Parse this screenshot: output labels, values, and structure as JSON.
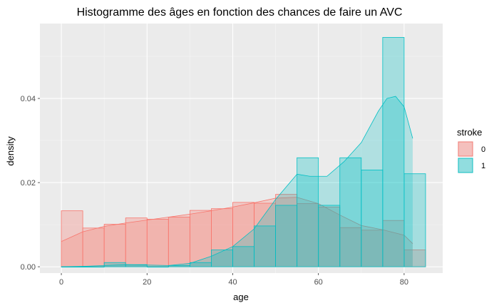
{
  "chart_data": {
    "type": "histogram",
    "title": "Histogramme des âges en fonction des chances de faire un AVC",
    "xlabel": "age",
    "ylabel": "density",
    "xlim": [
      -5,
      89
    ],
    "ylim": [
      -0.0015,
      0.0578
    ],
    "x_ticks": [
      0,
      20,
      40,
      60,
      80
    ],
    "x_tick_labels": [
      "0",
      "20",
      "40",
      "60",
      "80"
    ],
    "y_ticks": [
      0.0,
      0.02,
      0.04
    ],
    "y_tick_labels": [
      "0.00",
      "0.02",
      "0.04"
    ],
    "grid": true,
    "legend": {
      "title": "stroke",
      "position": "right"
    },
    "bins": [
      [
        0,
        5
      ],
      [
        5,
        10
      ],
      [
        10,
        15
      ],
      [
        15,
        20
      ],
      [
        20,
        25
      ],
      [
        25,
        30
      ],
      [
        30,
        35
      ],
      [
        35,
        40
      ],
      [
        40,
        45
      ],
      [
        45,
        50
      ],
      [
        50,
        55
      ],
      [
        55,
        60
      ],
      [
        60,
        65
      ],
      [
        65,
        70
      ],
      [
        70,
        75
      ],
      [
        75,
        80
      ],
      [
        80,
        85
      ]
    ],
    "series": [
      {
        "name": "0",
        "color": "#F8766D",
        "fill": "#F8766D",
        "histogram": [
          0.0133,
          0.0092,
          0.0101,
          0.0116,
          0.0113,
          0.0118,
          0.0134,
          0.0138,
          0.0153,
          0.0151,
          0.0172,
          0.015,
          0.0142,
          0.0093,
          0.0087,
          0.011,
          0.004
        ],
        "density_x": [
          0,
          5,
          10,
          15,
          20,
          25,
          30,
          35,
          40,
          45,
          50,
          55,
          60,
          65,
          70,
          75,
          80,
          82
        ],
        "density_y": [
          0.006,
          0.0083,
          0.0096,
          0.0104,
          0.0111,
          0.0118,
          0.0125,
          0.0133,
          0.0142,
          0.0152,
          0.0163,
          0.0165,
          0.015,
          0.0123,
          0.0098,
          0.0088,
          0.0075,
          0.0055
        ]
      },
      {
        "name": "1",
        "color": "#00BFC4",
        "fill": "#00BFC4",
        "histogram": [
          0.0,
          0.0,
          0.001,
          0.0005,
          0.0,
          0.0003,
          0.001,
          0.004,
          0.0048,
          0.0097,
          0.0146,
          0.0259,
          0.0146,
          0.0259,
          0.023,
          0.0545,
          0.0221
        ],
        "density_x": [
          0,
          5,
          10,
          15,
          20,
          25,
          30,
          35,
          40,
          45,
          50,
          55,
          58,
          62,
          66,
          70,
          74,
          76,
          78,
          80,
          82
        ],
        "density_y": [
          0.0,
          0.0001,
          0.0003,
          0.0005,
          0.0004,
          0.0003,
          0.0008,
          0.0025,
          0.0048,
          0.009,
          0.016,
          0.022,
          0.0215,
          0.0215,
          0.025,
          0.0295,
          0.037,
          0.04,
          0.0405,
          0.038,
          0.0305
        ]
      }
    ]
  }
}
